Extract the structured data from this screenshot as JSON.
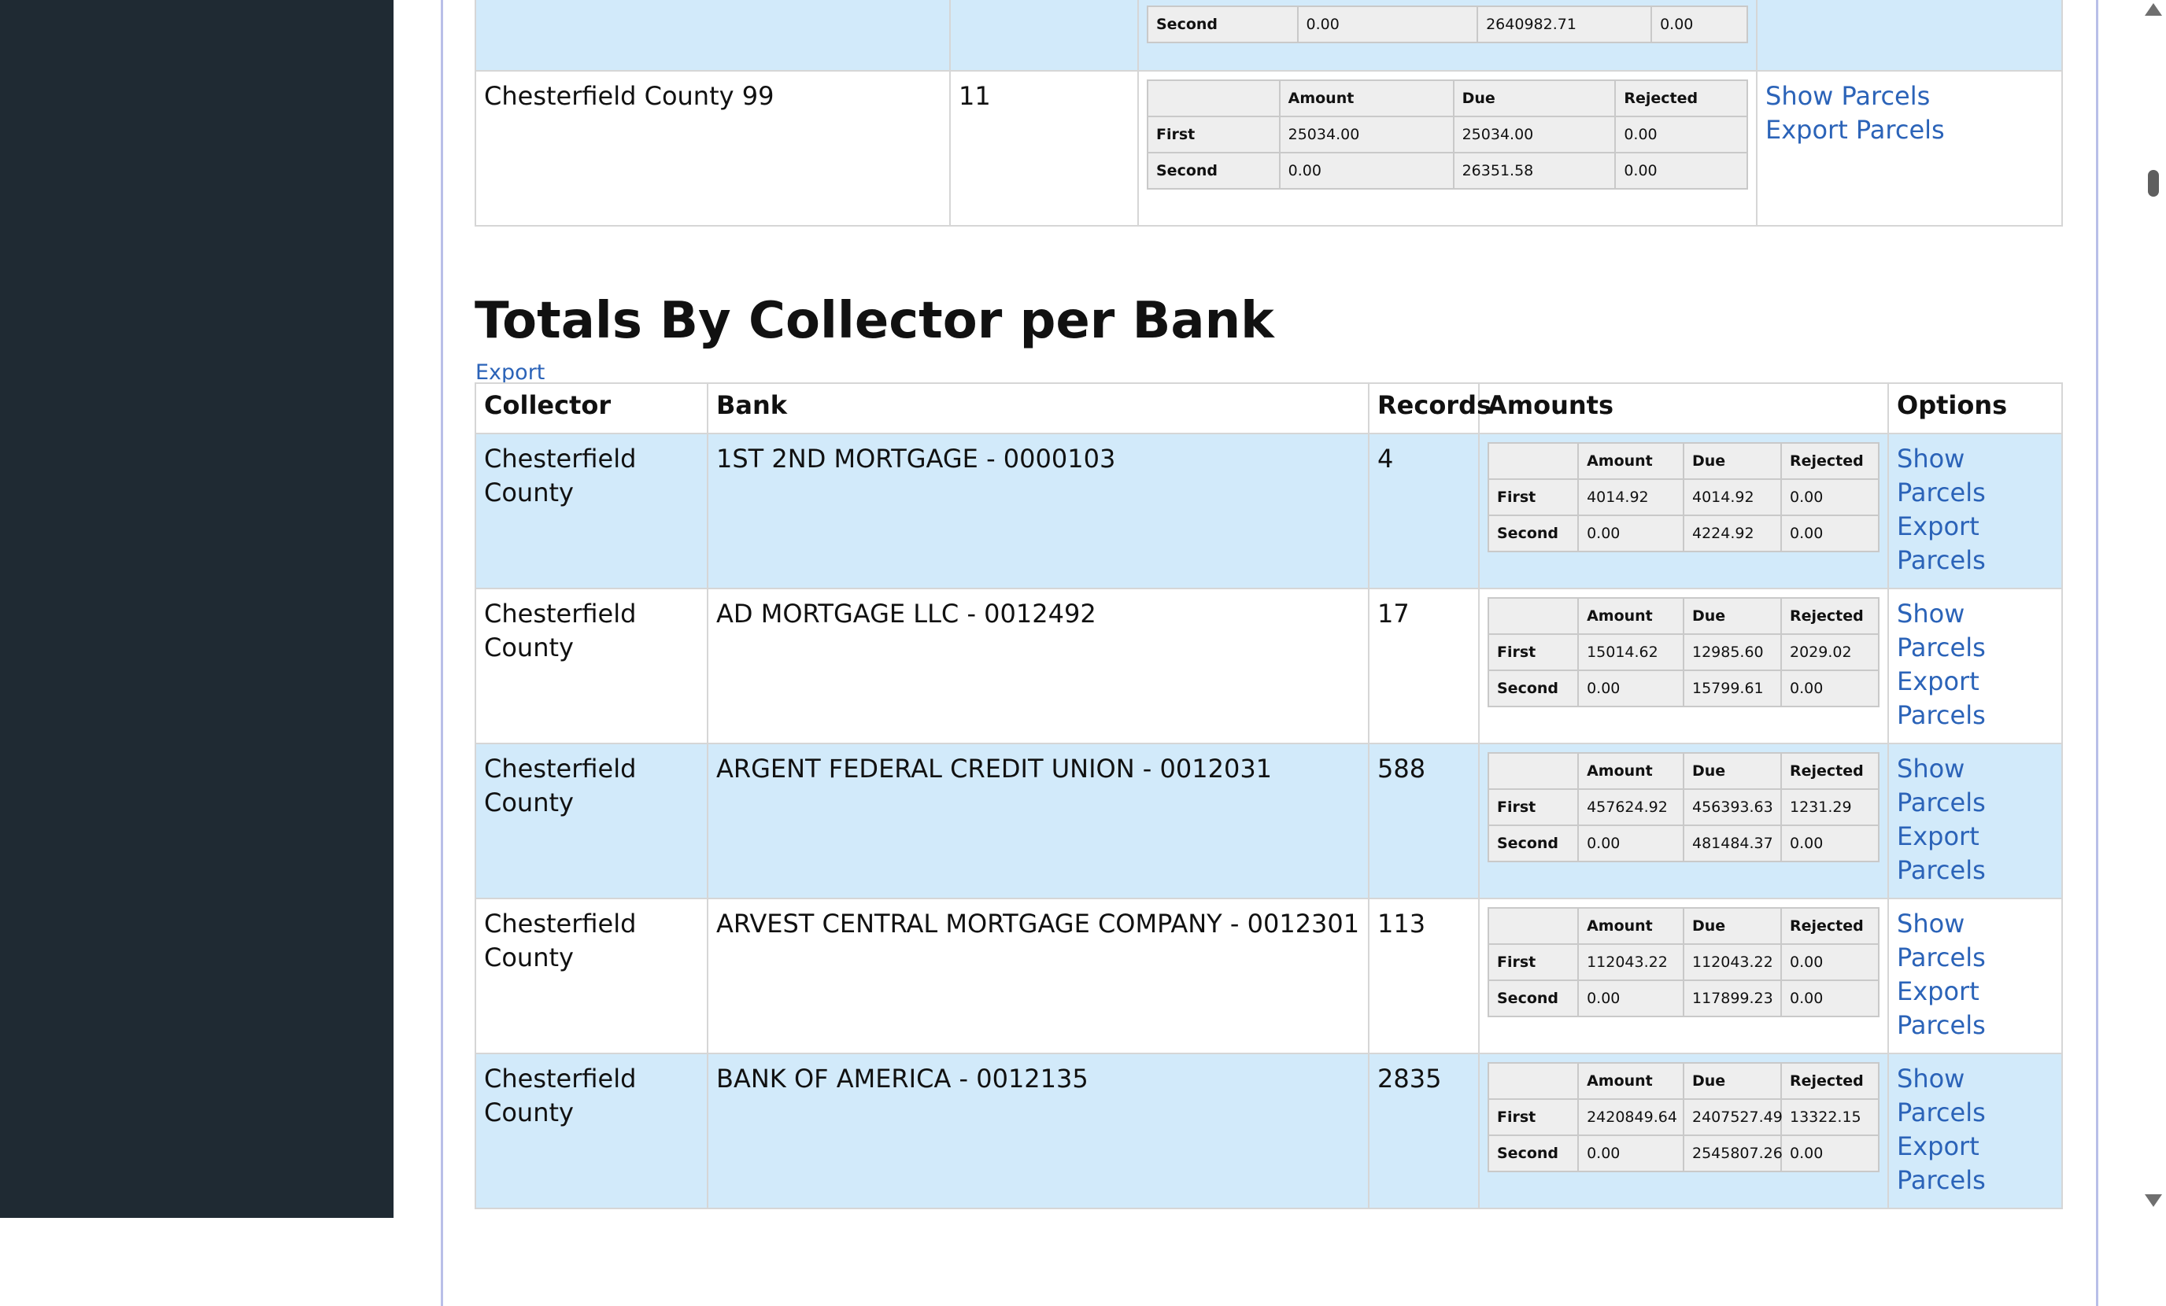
{
  "top_table": {
    "partial_row": {
      "amounts": [
        {
          "label": "Second",
          "amount": "0.00",
          "due": "2640982.71",
          "rejected": "0.00"
        }
      ]
    },
    "row": {
      "collector": "Chesterfield County 99",
      "records": "11",
      "amount_headers": [
        "",
        "Amount",
        "Due",
        "Rejected"
      ],
      "amounts": [
        {
          "label": "First",
          "amount": "25034.00",
          "due": "25034.00",
          "rejected": "0.00"
        },
        {
          "label": "Second",
          "amount": "0.00",
          "due": "26351.58",
          "rejected": "0.00"
        }
      ],
      "show_label": "Show Parcels",
      "export_label": "Export Parcels"
    }
  },
  "section": {
    "heading": "Totals By Collector per Bank",
    "export_label": "Export"
  },
  "bank_table": {
    "headers": {
      "collector": "Collector",
      "bank": "Bank",
      "records": "Records",
      "amounts": "Amounts",
      "options": "Options"
    },
    "mini_headers": [
      "",
      "Amount",
      "Due",
      "Rejected"
    ],
    "option_labels": {
      "show": "Show Parcels",
      "export": "Export Parcels"
    },
    "rows": [
      {
        "collector": "Chesterfield County",
        "bank": "1ST 2ND MORTGAGE - 0000103",
        "records": "4",
        "first": {
          "label": "First",
          "amount": "4014.92",
          "due": "4014.92",
          "rejected": "0.00"
        },
        "second": {
          "label": "Second",
          "amount": "0.00",
          "due": "4224.92",
          "rejected": "0.00"
        }
      },
      {
        "collector": "Chesterfield County",
        "bank": "AD MORTGAGE LLC - 0012492",
        "records": "17",
        "first": {
          "label": "First",
          "amount": "15014.62",
          "due": "12985.60",
          "rejected": "2029.02"
        },
        "second": {
          "label": "Second",
          "amount": "0.00",
          "due": "15799.61",
          "rejected": "0.00"
        }
      },
      {
        "collector": "Chesterfield County",
        "bank": "ARGENT FEDERAL CREDIT UNION - 0012031",
        "records": "588",
        "first": {
          "label": "First",
          "amount": "457624.92",
          "due": "456393.63",
          "rejected": "1231.29"
        },
        "second": {
          "label": "Second",
          "amount": "0.00",
          "due": "481484.37",
          "rejected": "0.00"
        }
      },
      {
        "collector": "Chesterfield County",
        "bank": "ARVEST CENTRAL MORTGAGE COMPANY - 0012301",
        "records": "113",
        "first": {
          "label": "First",
          "amount": "112043.22",
          "due": "112043.22",
          "rejected": "0.00"
        },
        "second": {
          "label": "Second",
          "amount": "0.00",
          "due": "117899.23",
          "rejected": "0.00"
        }
      },
      {
        "collector": "Chesterfield County",
        "bank": "BANK OF AMERICA - 0012135",
        "records": "2835",
        "first": {
          "label": "First",
          "amount": "2420849.64",
          "due": "2407527.49",
          "rejected": "13322.15"
        },
        "second": {
          "label": "Second",
          "amount": "0.00",
          "due": "2545807.26",
          "rejected": "0.00"
        }
      }
    ]
  }
}
